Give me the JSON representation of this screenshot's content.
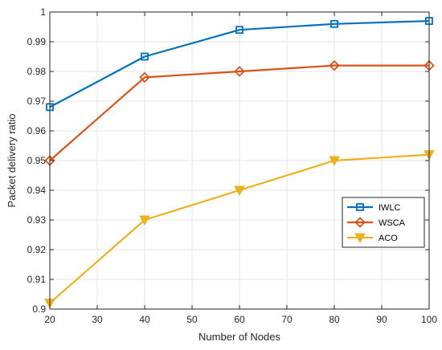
{
  "chart_data": {
    "type": "line",
    "title": "",
    "xlabel": "Number of Nodes",
    "ylabel": "Packet delivery ratio",
    "xlim": [
      20,
      100
    ],
    "ylim": [
      0.9,
      1.0
    ],
    "xticks": [
      20,
      30,
      40,
      50,
      60,
      70,
      80,
      90,
      100
    ],
    "yticks": [
      0.9,
      0.91,
      0.92,
      0.93,
      0.94,
      0.95,
      0.96,
      0.97,
      0.98,
      0.99,
      1
    ],
    "grid": true,
    "legend_position": "right-center",
    "series": [
      {
        "name": "IWLC",
        "color": "#0072BD",
        "marker": "square",
        "x": [
          20,
          40,
          60,
          80,
          100
        ],
        "y": [
          0.968,
          0.985,
          0.994,
          0.996,
          0.997
        ]
      },
      {
        "name": "WSCA",
        "color": "#D95319",
        "marker": "diamond",
        "x": [
          20,
          40,
          60,
          80,
          100
        ],
        "y": [
          0.95,
          0.978,
          0.98,
          0.982,
          0.982
        ]
      },
      {
        "name": "ACO",
        "color": "#EDB120",
        "marker": "triangle-down",
        "x": [
          20,
          40,
          60,
          80,
          100
        ],
        "y": [
          0.902,
          0.93,
          0.94,
          0.95,
          0.952
        ]
      }
    ]
  }
}
